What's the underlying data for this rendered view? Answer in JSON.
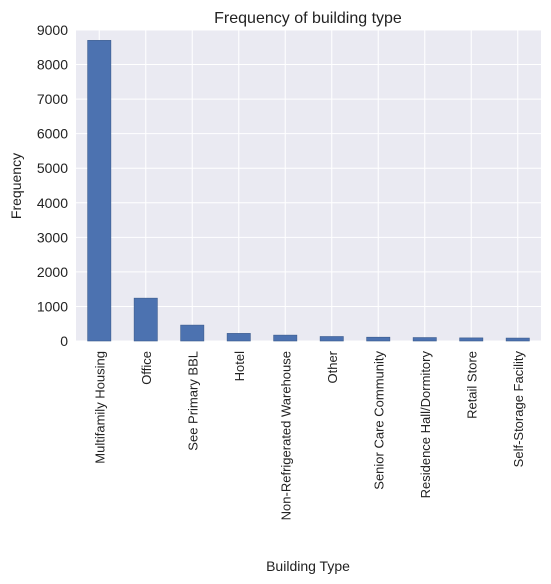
{
  "chart_data": {
    "type": "bar",
    "title": "Frequency of building type",
    "xlabel": "Building Type",
    "ylabel": "Frequency",
    "categories": [
      "Multifamily Housing",
      "Office",
      "See Primary BBL",
      "Hotel",
      "Non-Refrigerated Warehouse",
      "Other",
      "Senior Care Community",
      "Residence Hall/Dormitory",
      "Retail Store",
      "Self-Storage Facility"
    ],
    "values": [
      8700,
      1240,
      460,
      220,
      170,
      130,
      110,
      100,
      90,
      85
    ],
    "ylim": [
      0,
      9000
    ],
    "yticks": [
      "0",
      "1000",
      "2000",
      "3000",
      "4000",
      "5000",
      "6000",
      "7000",
      "8000",
      "9000"
    ],
    "grid": true,
    "legend": "none",
    "colors": {
      "bar": "#4c72b0",
      "plot_background": "#eaeaf2",
      "grid": "#ffffff"
    }
  }
}
